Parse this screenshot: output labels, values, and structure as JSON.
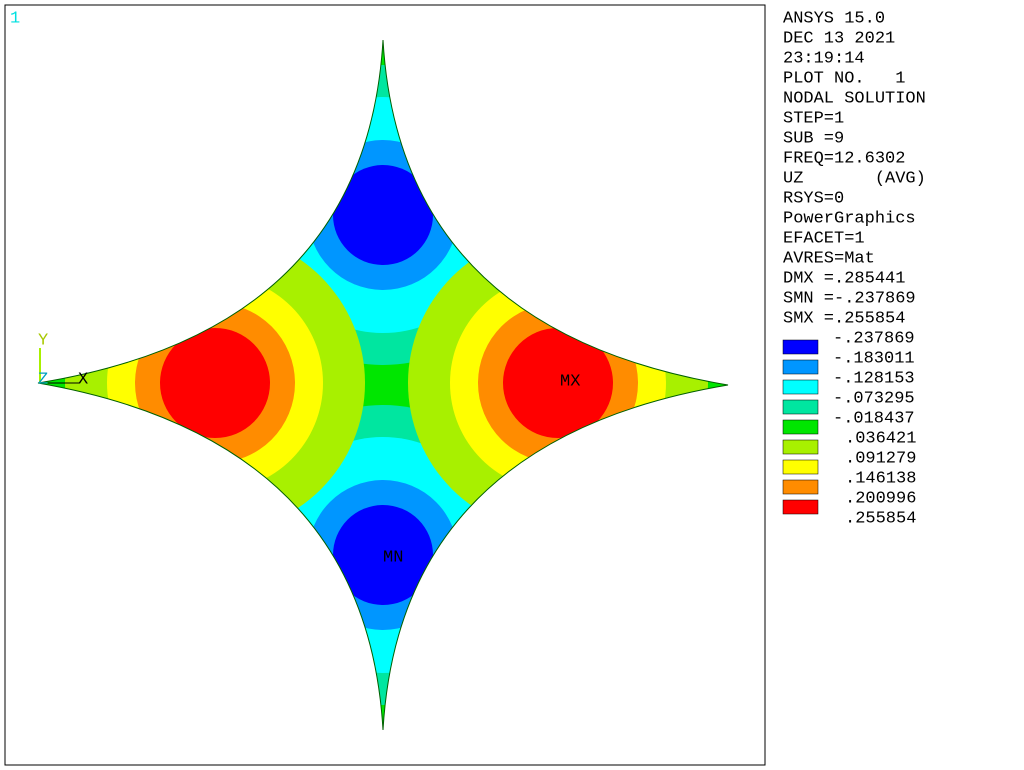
{
  "window": {
    "number": "1"
  },
  "info": [
    "ANSYS 15.0",
    "DEC 13 2021",
    "23:19:14",
    "PLOT NO.   1",
    "NODAL SOLUTION",
    "STEP=1",
    "SUB =9",
    "FREQ=12.6302",
    "UZ       (AVG)",
    "RSYS=0",
    "PowerGraphics",
    "EFACET=1",
    "AVRES=Mat",
    "DMX =.285441",
    "SMN =-.237869",
    "SMX =.255854"
  ],
  "legend": {
    "labels": [
      "-.237869",
      "-.183011",
      "-.128153",
      "-.073295",
      "-.018437",
      ".036421",
      ".091279",
      ".146138",
      ".200996",
      ".255854"
    ],
    "colors": [
      "#0000ff",
      "#0096ff",
      "#00ffff",
      "#00e6a0",
      "#00e600",
      "#a8f000",
      "#ffff00",
      "#ff8c00",
      "#ff0000"
    ]
  },
  "plot": {
    "min_label": "MN",
    "max_label": "MX",
    "axis_x": "X",
    "axis_y": "Y",
    "axis_z": "Z"
  }
}
